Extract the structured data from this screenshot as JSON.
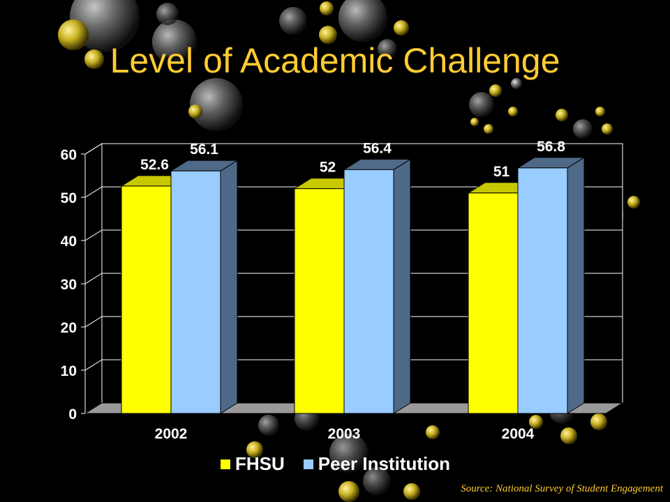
{
  "slide": {
    "title": "Level of Academic Challenge",
    "source": "Source: National Survey of Student Engagement"
  },
  "colors": {
    "background": "#000000",
    "title": "#FFCC33",
    "fhsu": "#FFFF00",
    "peer": "#99CCFF"
  },
  "chart_data": {
    "type": "bar",
    "style": "3d-clustered",
    "categories": [
      "2002",
      "2003",
      "2004"
    ],
    "series": [
      {
        "name": "FHSU",
        "values": [
          52.6,
          52,
          51
        ],
        "color": "#FFFF00"
      },
      {
        "name": "Peer Institution",
        "values": [
          56.1,
          56.4,
          56.8
        ],
        "color": "#99CCFF"
      }
    ],
    "ylim": [
      0,
      60
    ],
    "yticks": [
      0,
      10,
      20,
      30,
      40,
      50,
      60
    ],
    "grid": true,
    "legend": "bottom",
    "data_labels": true
  }
}
